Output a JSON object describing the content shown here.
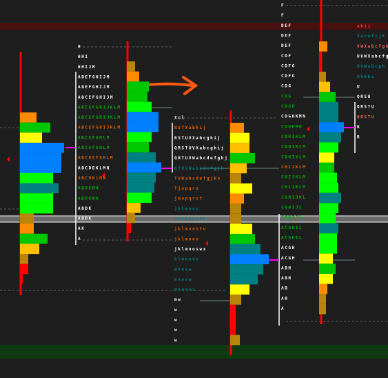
{
  "palette": {
    "O": "#ff8c00",
    "G": "#00c800",
    "L": "#00ff00",
    "Y": "#ffff00",
    "B": "#0080ff",
    "T": "#008080",
    "N": "#b8860b",
    "R": "#ff0000",
    "D": "#ffc000"
  },
  "profiles": [
    {
      "bars": [
        {
          "color": "O",
          "size": 6
        },
        {
          "color": "G",
          "size": 11
        },
        {
          "color": "Y",
          "size": 8
        },
        {
          "color": "B",
          "size": 16
        },
        {
          "color": "B",
          "size": 15
        },
        {
          "color": "B",
          "size": 15
        },
        {
          "color": "L",
          "size": 12
        },
        {
          "color": "T",
          "size": 14
        },
        {
          "color": "L",
          "size": 12
        },
        {
          "color": "L",
          "size": 12
        },
        {
          "color": "N",
          "size": 5
        },
        {
          "color": "O",
          "size": 5
        },
        {
          "color": "G",
          "size": 10
        },
        {
          "color": "D",
          "size": 7
        },
        {
          "color": "N",
          "size": 3
        },
        {
          "color": "R",
          "size": 3
        },
        {
          "color": "R",
          "size": 1
        }
      ]
    },
    {
      "bars": [
        {
          "color": "N",
          "size": 3
        },
        {
          "color": "O",
          "size": 4.5
        },
        {
          "color": "G",
          "size": 8
        },
        {
          "color": "G",
          "size": 7.5
        },
        {
          "color": "L",
          "size": 9
        },
        {
          "color": "B",
          "size": 11.5
        },
        {
          "color": "B",
          "size": 11.5
        },
        {
          "color": "L",
          "size": 9
        },
        {
          "color": "G",
          "size": 8
        },
        {
          "color": "T",
          "size": 10.5
        },
        {
          "color": "B",
          "size": 12.5
        },
        {
          "color": "T",
          "size": 10.5
        },
        {
          "color": "T",
          "size": 10
        },
        {
          "color": "L",
          "size": 9
        },
        {
          "color": "D",
          "size": 5
        },
        {
          "color": "N",
          "size": 3
        },
        {
          "color": "R",
          "size": 1.5
        }
      ]
    },
    {
      "bars": [
        {
          "color": "O",
          "size": 5
        },
        {
          "color": "Y",
          "size": 7
        },
        {
          "color": "D",
          "size": 7
        },
        {
          "color": "G",
          "size": 9
        },
        {
          "color": "D",
          "size": 6
        },
        {
          "color": "N",
          "size": 4
        },
        {
          "color": "Y",
          "size": 8
        },
        {
          "color": "O",
          "size": 5
        },
        {
          "color": "N",
          "size": 4
        },
        {
          "color": "N",
          "size": 4
        },
        {
          "color": "Y",
          "size": 8
        },
        {
          "color": "G",
          "size": 9
        },
        {
          "color": "T",
          "size": 11
        },
        {
          "color": "B",
          "size": 14
        },
        {
          "color": "T",
          "size": 12
        },
        {
          "color": "T",
          "size": 10
        },
        {
          "color": "Y",
          "size": 7
        },
        {
          "color": "N",
          "size": 4
        },
        {
          "color": "R",
          "size": 2
        },
        {
          "color": "R",
          "size": 2
        },
        {
          "color": "R",
          "size": 2
        },
        {
          "color": "N",
          "size": 3.5
        }
      ]
    },
    {
      "bars": [
        {
          "color": "O",
          "size": 3
        },
        {
          "color": "R",
          "size": 1
        },
        {
          "color": "R",
          "size": 1
        },
        {
          "color": "N",
          "size": 2.5
        },
        {
          "color": "D",
          "size": 4
        },
        {
          "color": "G",
          "size": 6
        },
        {
          "color": "T",
          "size": 7
        },
        {
          "color": "T",
          "size": 7
        },
        {
          "color": "B",
          "size": 9
        },
        {
          "color": "T",
          "size": 8
        },
        {
          "color": "L",
          "size": 7
        },
        {
          "color": "Y",
          "size": 5.5
        },
        {
          "color": "G",
          "size": 5.5
        },
        {
          "color": "L",
          "size": 6.5
        },
        {
          "color": "L",
          "size": 7
        },
        {
          "color": "T",
          "size": 8
        },
        {
          "color": "L",
          "size": 7
        },
        {
          "color": "L",
          "size": 6
        },
        {
          "color": "T",
          "size": 7
        },
        {
          "color": "L",
          "size": 6.5
        },
        {
          "color": "L",
          "size": 6.5
        },
        {
          "color": "Y",
          "size": 5
        },
        {
          "color": "G",
          "size": 6
        },
        {
          "color": "Y",
          "size": 5
        },
        {
          "color": "O",
          "size": 3
        },
        {
          "color": "N",
          "size": 2.5
        },
        {
          "color": "N",
          "size": 2.5
        }
      ]
    }
  ],
  "letter_columns": [
    {
      "rows": [
        {
          "text": "H",
          "color": "#ffffff"
        },
        {
          "text": "HHI",
          "color": "#ffffff"
        },
        {
          "text": "HHIJM",
          "color": "#ffffff"
        },
        {
          "text": "ABEFGHIJM",
          "color": "#ffffff"
        },
        {
          "text": "ABEFGHIJM",
          "color": "#ffffff"
        },
        {
          "text": "ABCEFGHIJM",
          "color": "#ffffff"
        },
        {
          "text": "ABCEFGHIJKLM",
          "color": "#00b000"
        },
        {
          "text": "ABCEFGHIJKLM",
          "color": "#00b000"
        },
        {
          "text": "ABCEFGHIJKLM",
          "color": "#e06000"
        },
        {
          "text": "ABCEFGHLM",
          "color": "#00b000"
        },
        {
          "text": "ABCEFGHLM",
          "color": "#00b000"
        },
        {
          "text": "ABCDEFGHLM",
          "color": "#e06000"
        },
        {
          "text": "ABCDEKLMN",
          "color": "#ffffff"
        },
        {
          "text": "ABCDKLMN",
          "color": "#e06000"
        },
        {
          "text": "ABDKMN",
          "color": "#00b000"
        },
        {
          "text": "ABDKMN",
          "color": "#00b000"
        },
        {
          "text": "ABDK",
          "color": "#ffffff"
        },
        {
          "text": "ABDK",
          "color": "#ffffff"
        },
        {
          "text": "AK",
          "color": "#ffffff"
        },
        {
          "text": "A",
          "color": "#ffffff"
        }
      ]
    },
    {
      "rows": [
        {
          "text": "Xcl",
          "color": "#ffffff"
        },
        {
          "text": "RSTXabhij",
          "color": "#ff6000"
        },
        {
          "text": "RSTUVXabcghij",
          "color": "#ffffff"
        },
        {
          "text": "QRSTUVXabcghij",
          "color": "#ffffff"
        },
        {
          "text": "QRTUVWabcdefghj",
          "color": "#ffffff"
        },
        {
          "text": "QTUVWabcdefgjk",
          "color": "#008080"
        },
        {
          "text": "TUWabcdefgjkn",
          "color": "#e06000"
        },
        {
          "text": "Tjopqrs",
          "color": "#e06000"
        },
        {
          "text": "jmopqrst",
          "color": "#e06000"
        },
        {
          "text": "jklmnos",
          "color": "#008080"
        },
        {
          "text": "jklmnostu",
          "color": "#008080"
        },
        {
          "text": "jklmnostu",
          "color": "#e06000"
        },
        {
          "text": "jklmnos",
          "color": "#e06000"
        },
        {
          "text": "jklmnoswx",
          "color": "#ffffff"
        },
        {
          "text": "klmnosw",
          "color": "#008080"
        },
        {
          "text": "mnosw",
          "color": "#008080"
        },
        {
          "text": "mnosw",
          "color": "#008080"
        },
        {
          "text": "mnoswx",
          "color": "#008080"
        },
        {
          "text": "mw",
          "color": "#ffffff"
        },
        {
          "text": "w",
          "color": "#ffffff"
        },
        {
          "text": "w",
          "color": "#ffffff"
        },
        {
          "text": "w",
          "color": "#ffffff"
        },
        {
          "text": "w",
          "color": "#ffffff"
        }
      ]
    },
    {
      "rows": [
        {
          "text": "F",
          "color": "#ffffff"
        },
        {
          "text": "F",
          "color": "#ffffff"
        },
        {
          "text": "DEF",
          "color": "#ffffff"
        },
        {
          "text": "DEF",
          "color": "#ffffff"
        },
        {
          "text": "DEF",
          "color": "#ffffff"
        },
        {
          "text": "CDF",
          "color": "#ffffff"
        },
        {
          "text": "CDFG",
          "color": "#ffffff"
        },
        {
          "text": "CDFG",
          "color": "#ffffff"
        },
        {
          "text": "CDG",
          "color": "#ffffff"
        },
        {
          "text": "CDG",
          "color": "#00b000"
        },
        {
          "text": "CDGH",
          "color": "#00b000"
        },
        {
          "text": "CDGHKMN",
          "color": "#ffffff"
        },
        {
          "text": "CDHKMN",
          "color": "#00b000"
        },
        {
          "text": "CDHIKLM",
          "color": "#00b000"
        },
        {
          "text": "CDHIKLM",
          "color": "#00b000"
        },
        {
          "text": "CDHIKLM",
          "color": "#00b000"
        },
        {
          "text": "CHIJKLM",
          "color": "#e06000"
        },
        {
          "text": "CHIJKLM",
          "color": "#00b000"
        },
        {
          "text": "CHIJKLM",
          "color": "#00b000"
        },
        {
          "text": "CGHIJKL",
          "color": "#00b000"
        },
        {
          "text": "CGHIJL",
          "color": "#00b000"
        },
        {
          "text": "CGHIJL",
          "color": "#00b000"
        },
        {
          "text": "ACGHIL",
          "color": "#00b000"
        },
        {
          "text": "ACGHIL",
          "color": "#00b000"
        },
        {
          "text": "ACGH",
          "color": "#ffffff"
        },
        {
          "text": "ACGH",
          "color": "#ffffff"
        },
        {
          "text": "ABH",
          "color": "#ffffff"
        },
        {
          "text": "ABH",
          "color": "#ffffff"
        },
        {
          "text": "AB",
          "color": "#ffffff"
        },
        {
          "text": "AB",
          "color": "#ffffff"
        },
        {
          "text": "A",
          "color": "#ffffff"
        }
      ]
    },
    {
      "rows": [
        {
          "text": "abij",
          "color": "#ff4040"
        },
        {
          "text": "Vacefijk",
          "color": "#008080"
        },
        {
          "text": "VWXabcfgh",
          "color": "#ff6060"
        },
        {
          "text": "UVWXabcfg",
          "color": "#ffffff"
        },
        {
          "text": "UVWabcgh",
          "color": "#008080"
        },
        {
          "text": "UVWbc",
          "color": "#008080"
        },
        {
          "text": "U",
          "color": "#ffffff"
        },
        {
          "text": "QRSU",
          "color": "#ffffff"
        },
        {
          "text": "QRSTU",
          "color": "#ffffff"
        },
        {
          "text": "QRSTU",
          "color": "#ff6060"
        },
        {
          "text": "R",
          "color": "#ffffff"
        },
        {
          "text": "R",
          "color": "#ffffff"
        }
      ]
    }
  ],
  "scale": 4
}
